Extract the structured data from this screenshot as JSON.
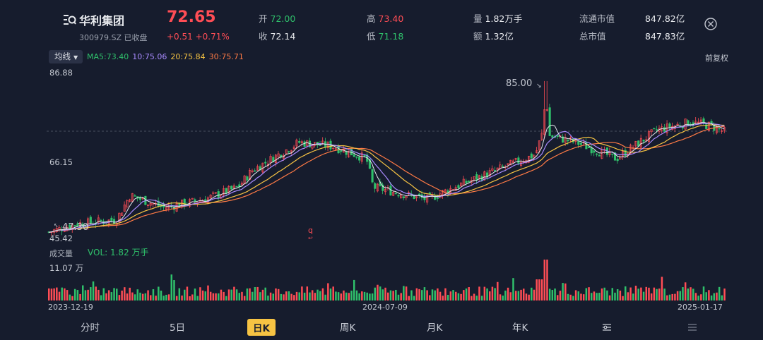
{
  "stock": {
    "name": "华利集团",
    "code_status": "300979.SZ 已收盘",
    "price": "72.65",
    "change": "+0.51 +0.71%"
  },
  "quote": [
    {
      "k": "开",
      "v": "72.00",
      "color": "#2fc06b"
    },
    {
      "k": "收",
      "v": "72.14",
      "color": "#e8eaee"
    },
    {
      "k": "高",
      "v": "73.40",
      "color": "#ff4d55"
    },
    {
      "k": "低",
      "v": "71.18",
      "color": "#2fc06b"
    },
    {
      "k": "量",
      "v": "1.82万手",
      "color": "#e8eaee"
    },
    {
      "k": "额",
      "v": "1.32亿",
      "color": "#e8eaee"
    },
    {
      "k": "流通市值",
      "v": "847.82亿",
      "color": "#e8eaee"
    },
    {
      "k": "总市值",
      "v": "847.83亿",
      "color": "#e8eaee"
    }
  ],
  "ma": {
    "select_label": "均线",
    "ma5": "MA5:73.40",
    "ma10": "10:75.06",
    "ma20": "20:75.84",
    "ma30": "30:75.71",
    "adjust": "前复权",
    "colors": {
      "ma5": "#2fc06b",
      "ma10": "#a98bff",
      "ma20": "#f6c343",
      "ma30": "#ff7a45"
    }
  },
  "price_axis": {
    "top": "86.88",
    "mid": "66.15",
    "bottom": "45.42",
    "high_mark": "85.00",
    "low_mark": "47.30"
  },
  "volume": {
    "title": "成交量",
    "value": "VOL: 1.82 万手",
    "max": "11.07 万"
  },
  "dates": [
    "2023-12-19",
    "2024-07-09",
    "2025-01-17"
  ],
  "tabs": [
    "分时",
    "5日",
    "日K",
    "周K",
    "月K",
    "年K"
  ],
  "active_tab": "日K",
  "icons": {
    "logo": "stock-logo-icon",
    "close": "close-icon",
    "settings": "settings-sliders-icon",
    "more": "more-menu-icon"
  }
}
